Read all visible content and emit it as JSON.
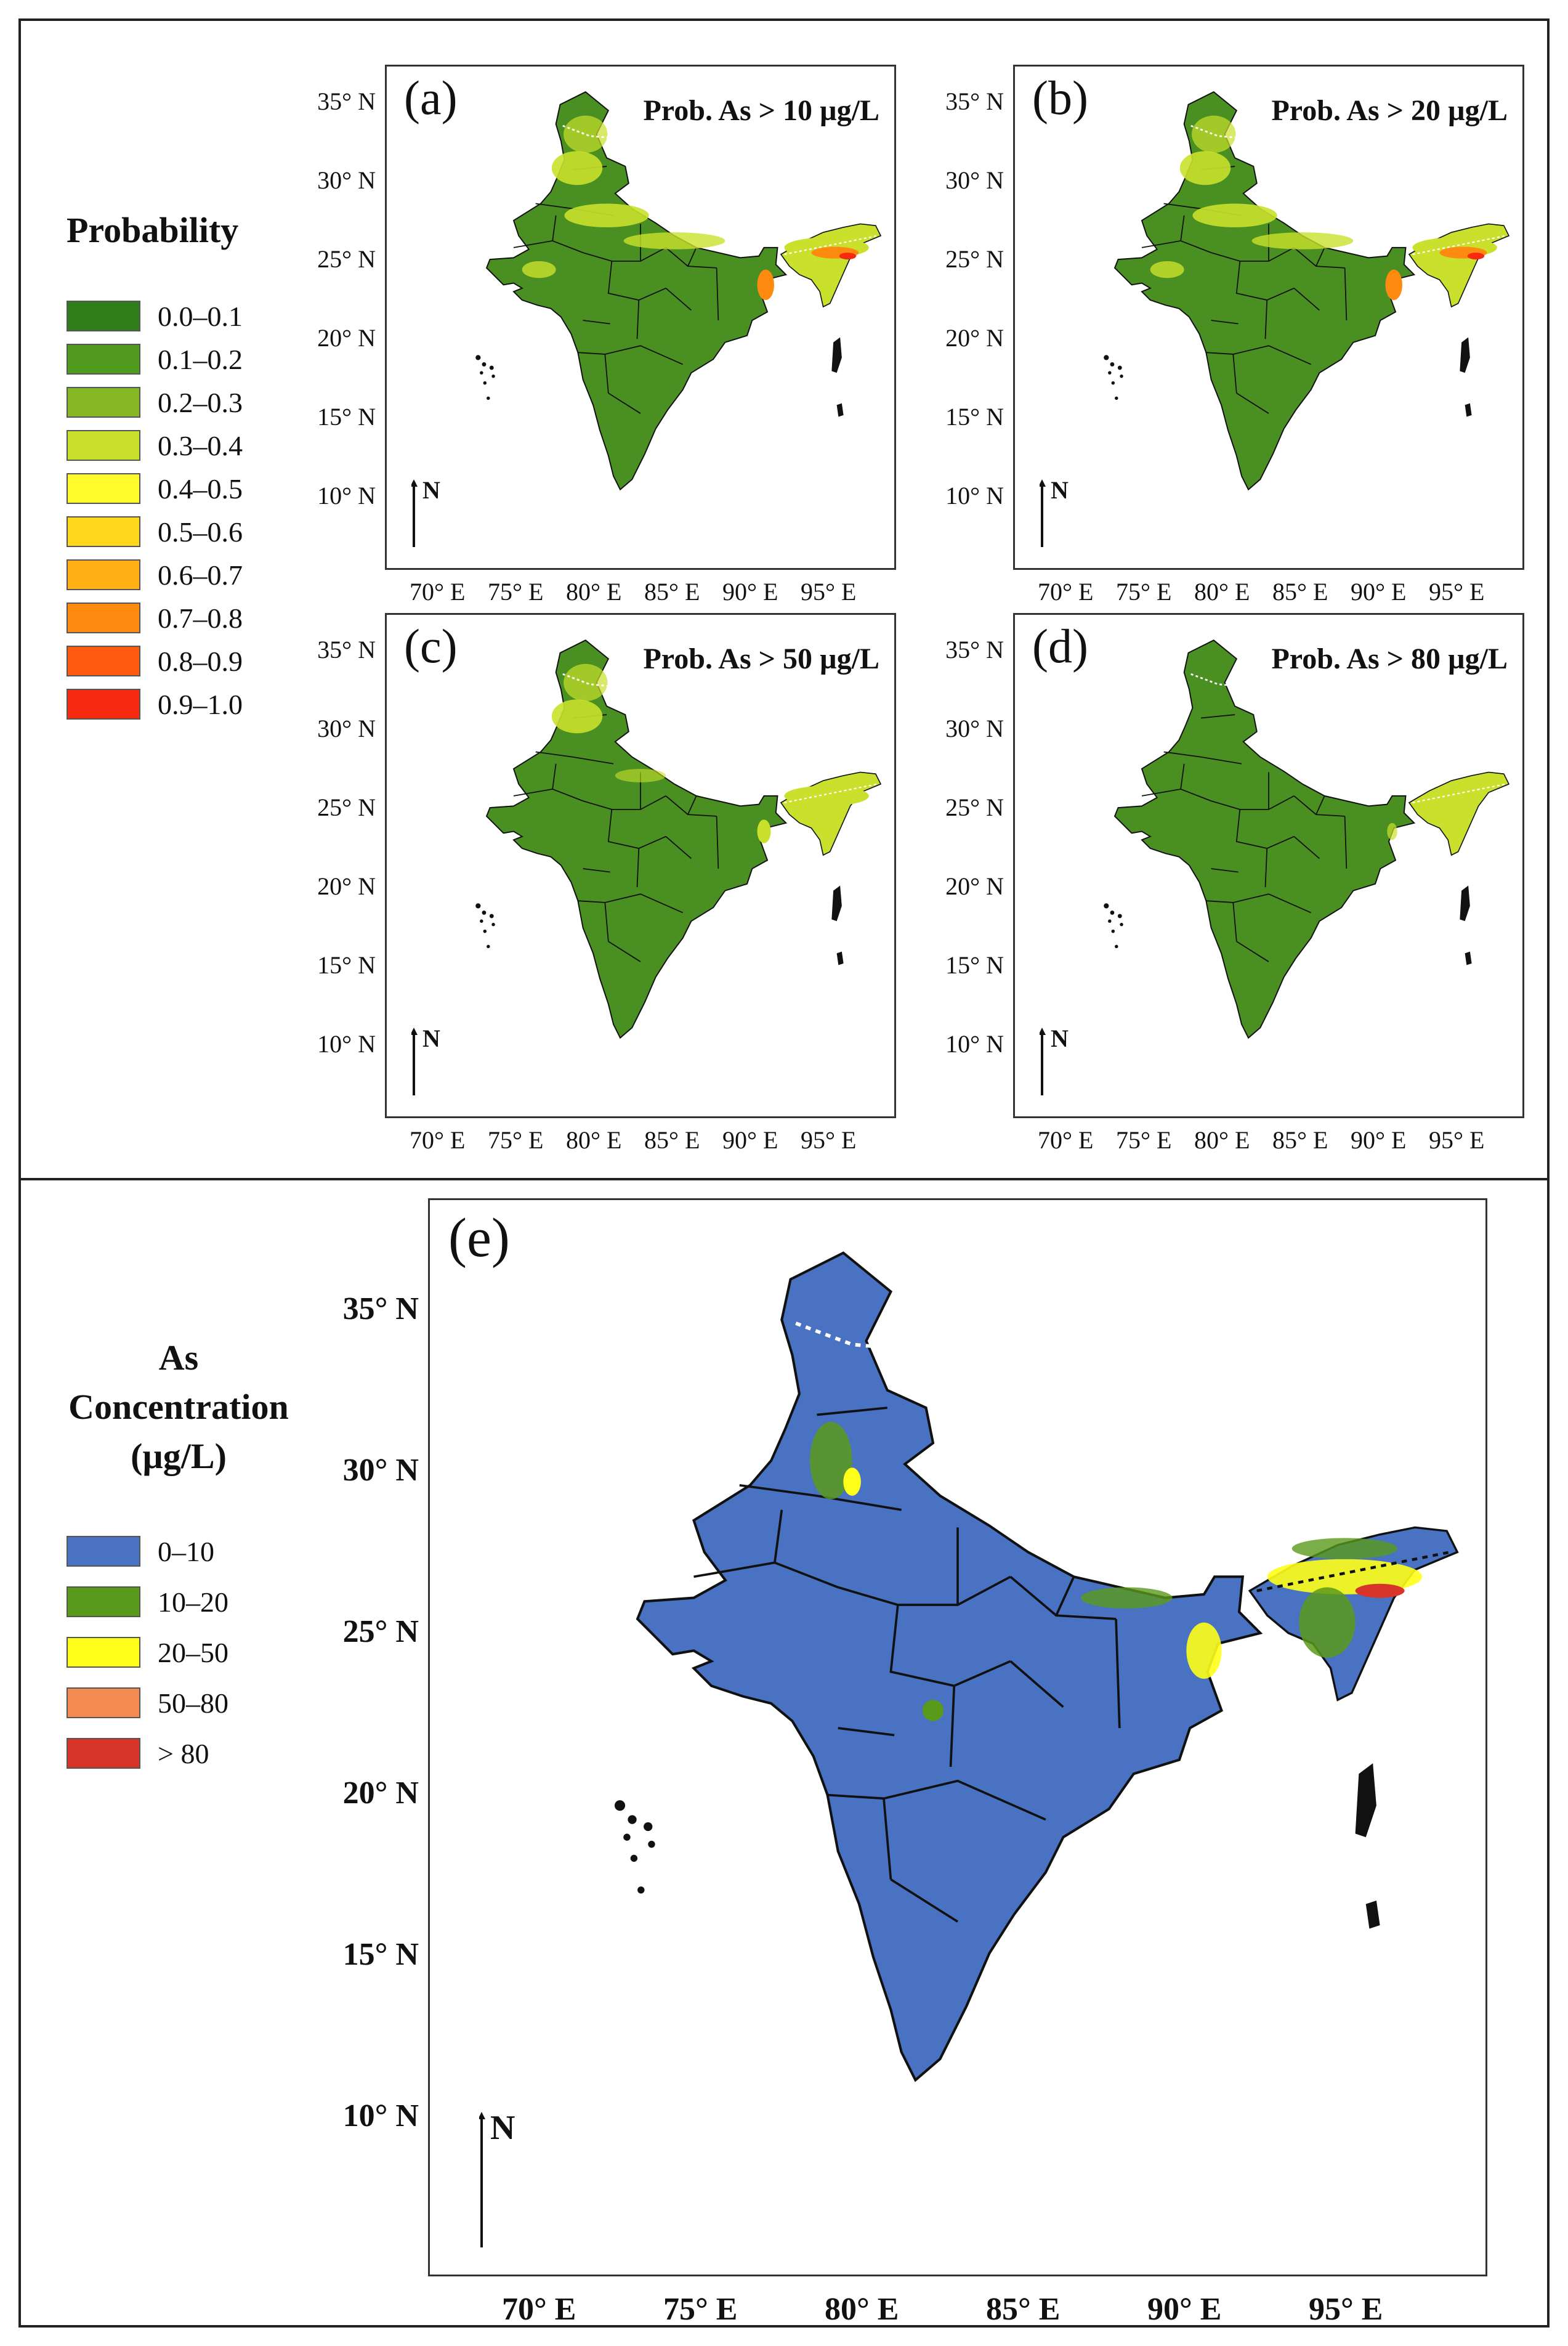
{
  "figure": {
    "panels": [
      {
        "id": "a",
        "label": "(a)",
        "title": "Prob. As > 10 µg/L"
      },
      {
        "id": "b",
        "label": "(b)",
        "title": "Prob. As > 20 µg/L"
      },
      {
        "id": "c",
        "label": "(c)",
        "title": "Prob. As > 50 µg/L"
      },
      {
        "id": "d",
        "label": "(d)",
        "title": "Prob. As > 80 µg/L"
      },
      {
        "id": "e",
        "label": "(e)",
        "title": ""
      }
    ],
    "lat_ticks": [
      "35° N",
      "30° N",
      "25° N",
      "20° N",
      "15° N",
      "10° N"
    ],
    "lon_ticks": [
      "70° E",
      "75° E",
      "80° E",
      "85° E",
      "90° E",
      "95° E"
    ],
    "north_label": "N"
  },
  "probability_legend": {
    "title": "Probability",
    "items": [
      {
        "label": "0.0–0.1",
        "color": "#2e7d1a"
      },
      {
        "label": "0.1–0.2",
        "color": "#4f9a1f"
      },
      {
        "label": "0.2–0.3",
        "color": "#86b826"
      },
      {
        "label": "0.3–0.4",
        "color": "#c9e12c"
      },
      {
        "label": "0.4–0.5",
        "color": "#fffb2c"
      },
      {
        "label": "0.5–0.6",
        "color": "#ffd81e"
      },
      {
        "label": "0.6–0.7",
        "color": "#ffb014"
      },
      {
        "label": "0.7–0.8",
        "color": "#ff8a10"
      },
      {
        "label": "0.8–0.9",
        "color": "#ff5a10"
      },
      {
        "label": "0.9–1.0",
        "color": "#f52a10"
      }
    ]
  },
  "concentration_legend": {
    "title_line1": "As",
    "title_line2": "Concentration",
    "title_line3": "(µg/L)",
    "items": [
      {
        "label": "0–10",
        "color": "#4a72c2"
      },
      {
        "label": "10–20",
        "color": "#5a9a1a"
      },
      {
        "label": "20–50",
        "color": "#ffff1a"
      },
      {
        "label": "50–80",
        "color": "#f38a4f"
      },
      {
        "label": "> 80",
        "color": "#d9342a"
      }
    ]
  },
  "colors": {
    "prob_base": "#4a8f22",
    "prob_dark": "#2e7d1a",
    "prob_yellow": "#c9e12c",
    "prob_orange": "#ff8a10",
    "prob_red": "#f52a10",
    "conc_base": "#4a72c2",
    "conc_green": "#5a9a1a",
    "conc_yellow": "#ffff1a",
    "conc_red": "#d9342a"
  }
}
